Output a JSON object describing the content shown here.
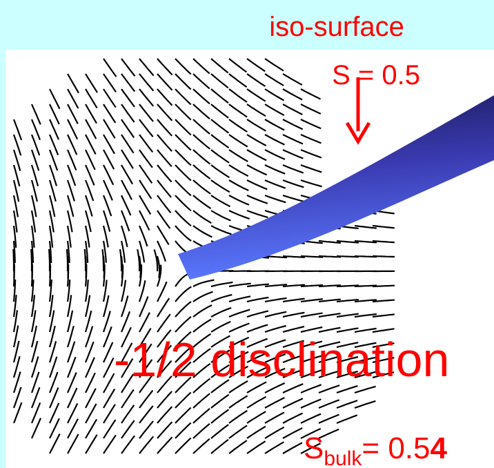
{
  "labels": {
    "iso_surface": "iso-surface",
    "iso_value": "S = 0.5",
    "defect": "-1/2 disclination",
    "bulk": {
      "symbol": "S",
      "subscript": "bulk",
      "equals": "= 0.5",
      "last_digit": "4"
    }
  }
}
